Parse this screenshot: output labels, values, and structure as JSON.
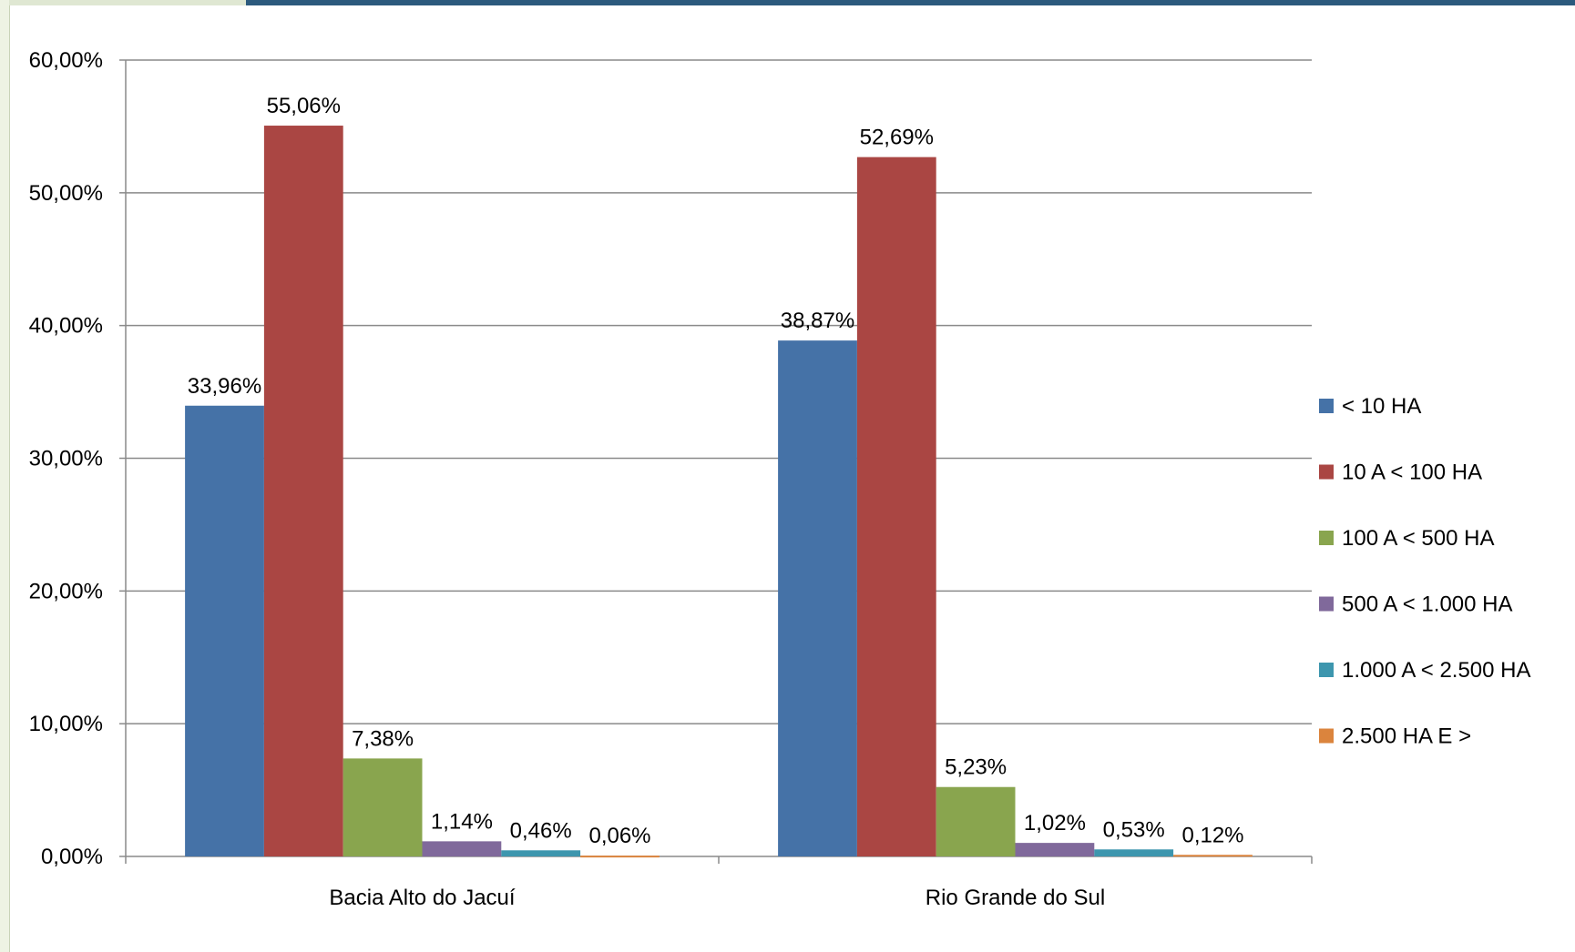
{
  "chart_data": {
    "type": "bar",
    "categories": [
      "Bacia Alto do Jacuí",
      "Rio Grande do Sul"
    ],
    "series": [
      {
        "name": "< 10 HA",
        "color": "#4572a7",
        "values": [
          33.96,
          38.87
        ],
        "labels": [
          "33,96%",
          "38,87%"
        ]
      },
      {
        "name": "10 A < 100 HA",
        "color": "#aa4643",
        "values": [
          55.06,
          52.69
        ],
        "labels": [
          "55,06%",
          "52,69%"
        ]
      },
      {
        "name": "100 A < 500 HA",
        "color": "#89a54e",
        "values": [
          7.38,
          5.23
        ],
        "labels": [
          "7,38%",
          "5,23%"
        ]
      },
      {
        "name": "500 A < 1.000 HA",
        "color": "#80699b",
        "values": [
          1.14,
          1.02
        ],
        "labels": [
          "1,14%",
          "1,02%"
        ]
      },
      {
        "name": "1.000 A < 2.500 HA",
        "color": "#3d96ae",
        "values": [
          0.46,
          0.53
        ],
        "labels": [
          "0,46%",
          "0,53%"
        ]
      },
      {
        "name": "2.500 HA E >",
        "color": "#db843d",
        "values": [
          0.06,
          0.12
        ],
        "labels": [
          "0,06%",
          "0,12%"
        ]
      }
    ],
    "yticks": [
      "0,00%",
      "10,00%",
      "20,00%",
      "30,00%",
      "40,00%",
      "50,00%",
      "60,00%"
    ],
    "ylim": [
      0,
      60
    ],
    "grid": true,
    "legend_position": "right",
    "title": "",
    "xlabel": "",
    "ylabel": ""
  }
}
